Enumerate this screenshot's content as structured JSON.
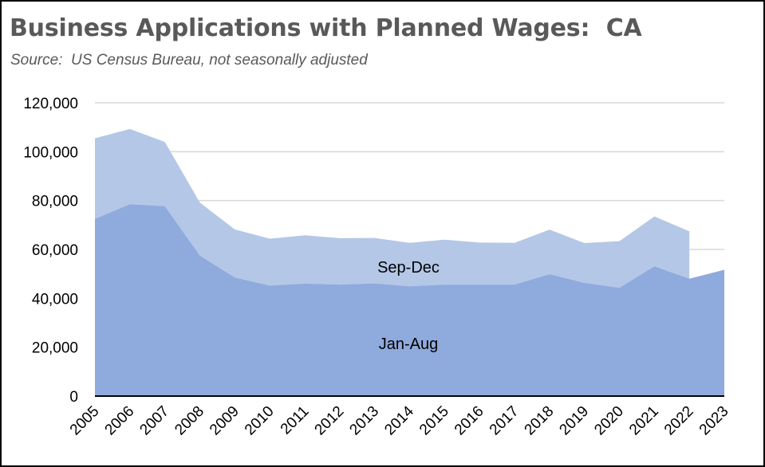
{
  "chart_data": {
    "type": "area",
    "stacked": true,
    "title": "Business Applications with Planned Wages:  CA",
    "subtitle": "Source:  US Census Bureau, not seasonally adjusted",
    "xlabel": "",
    "ylabel": "",
    "x": [
      "2005",
      "2006",
      "2007",
      "2008",
      "2009",
      "2010",
      "2011",
      "2012",
      "2013",
      "2014",
      "2015",
      "2016",
      "2017",
      "2018",
      "2019",
      "2020",
      "2021",
      "2022",
      "2023"
    ],
    "ylim": [
      0,
      120000
    ],
    "yticks": [
      0,
      20000,
      40000,
      60000,
      80000,
      100000,
      120000
    ],
    "ytick_labels": [
      "0",
      "20,000",
      "40,000",
      "60,000",
      "80,000",
      "100,000",
      "120,000"
    ],
    "grid": true,
    "legend": "none",
    "series": [
      {
        "name": "Jan-Aug",
        "color": "#8faadc",
        "values": [
          72500,
          78500,
          77700,
          57500,
          48500,
          45200,
          46000,
          45600,
          46100,
          44900,
          45600,
          45600,
          45600,
          49900,
          46300,
          44300,
          53100,
          48000,
          51700
        ]
      },
      {
        "name": "Sep-Dec",
        "color": "#b4c7e7",
        "values": [
          33000,
          30800,
          26300,
          21700,
          19700,
          19200,
          19800,
          19000,
          18600,
          17800,
          18400,
          17200,
          17100,
          18200,
          16300,
          19100,
          20400,
          19400,
          null
        ]
      }
    ]
  }
}
